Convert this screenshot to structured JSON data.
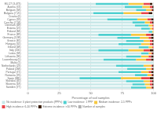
{
  "chart_data": {
    "type": "bar",
    "orientation": "horizontal",
    "stacked": true,
    "categories": [
      "EU-27 (3,473)",
      "Austria (74)",
      "Belgium (58)",
      "Bulgaria (7,25)",
      "Croatia (6)",
      "Cyprus (59)",
      "Czechia (7,58)",
      "Denmark (48)",
      "Estonia (21)",
      "Finland (84)",
      "France (89)",
      "Germany (3,98)",
      "Greece (81)",
      "Hungary (32)",
      "Ireland (48)",
      "Italy (205)",
      "Latvia (58)",
      "Lithuania (96)",
      "Luxembourg (5)",
      "Malta (1)",
      "Netherlands (23)",
      "Poland (268)",
      "Portugal (71)",
      "Romania (76)",
      "Spain (885)",
      "Slovakia (45)",
      "Slovenia (18)",
      "Sweden (77)"
    ],
    "series": [
      {
        "name": "No incidence: 0 plant protection products (PPPs)",
        "color": "#c8e8e8",
        "values": [
          54,
          77,
          86,
          52,
          100,
          63,
          83,
          85,
          90,
          96,
          56,
          71,
          78,
          72,
          88,
          56,
          90,
          78,
          60,
          100,
          70,
          79,
          72,
          85,
          41,
          78,
          83,
          82
        ]
      },
      {
        "name": "Low incidence: 1 PPP",
        "color": "#4ecfcf",
        "values": [
          26,
          14,
          8,
          24,
          0,
          24,
          10,
          11,
          7,
          3,
          26,
          18,
          14,
          18,
          8,
          24,
          6,
          12,
          26,
          0,
          22,
          15,
          18,
          10,
          33,
          14,
          10,
          12
        ]
      },
      {
        "name": "Medium incidence: 2-5 PPPs",
        "color": "#f5c842",
        "values": [
          12,
          6,
          4,
          14,
          0,
          8,
          4,
          3,
          2,
          1,
          12,
          7,
          5,
          7,
          3,
          12,
          2,
          6,
          8,
          0,
          6,
          4,
          6,
          3,
          16,
          5,
          4,
          4
        ]
      },
      {
        "name": "High incidence: 6-10 PPPs",
        "color": "#e8454a",
        "values": [
          5,
          2,
          1,
          6,
          0,
          3,
          2,
          1,
          1,
          0,
          4,
          2,
          2,
          2,
          1,
          5,
          1,
          2,
          4,
          0,
          1,
          1,
          2,
          1,
          7,
          2,
          2,
          1
        ]
      },
      {
        "name": "Extreme incidence: >10 PPPs",
        "color": "#3a1e08",
        "values": [
          2,
          1,
          1,
          3,
          0,
          2,
          1,
          0,
          0,
          0,
          2,
          2,
          1,
          1,
          0,
          3,
          1,
          2,
          2,
          0,
          1,
          1,
          2,
          1,
          3,
          1,
          1,
          1
        ]
      },
      {
        "name": "Number of samples",
        "color": "#b0b0b0",
        "values": [
          null,
          null,
          null,
          null,
          null,
          null,
          null,
          null,
          null,
          null,
          null,
          null,
          null,
          null,
          null,
          null,
          null,
          null,
          null,
          null,
          null,
          null,
          null,
          null,
          null,
          null,
          null,
          null
        ]
      }
    ],
    "xlabel": "Percentage of soil samples",
    "xlim": [
      0,
      100
    ],
    "xticks": [
      0,
      25,
      50,
      75,
      100
    ],
    "grid": true,
    "legend": "bottom"
  }
}
